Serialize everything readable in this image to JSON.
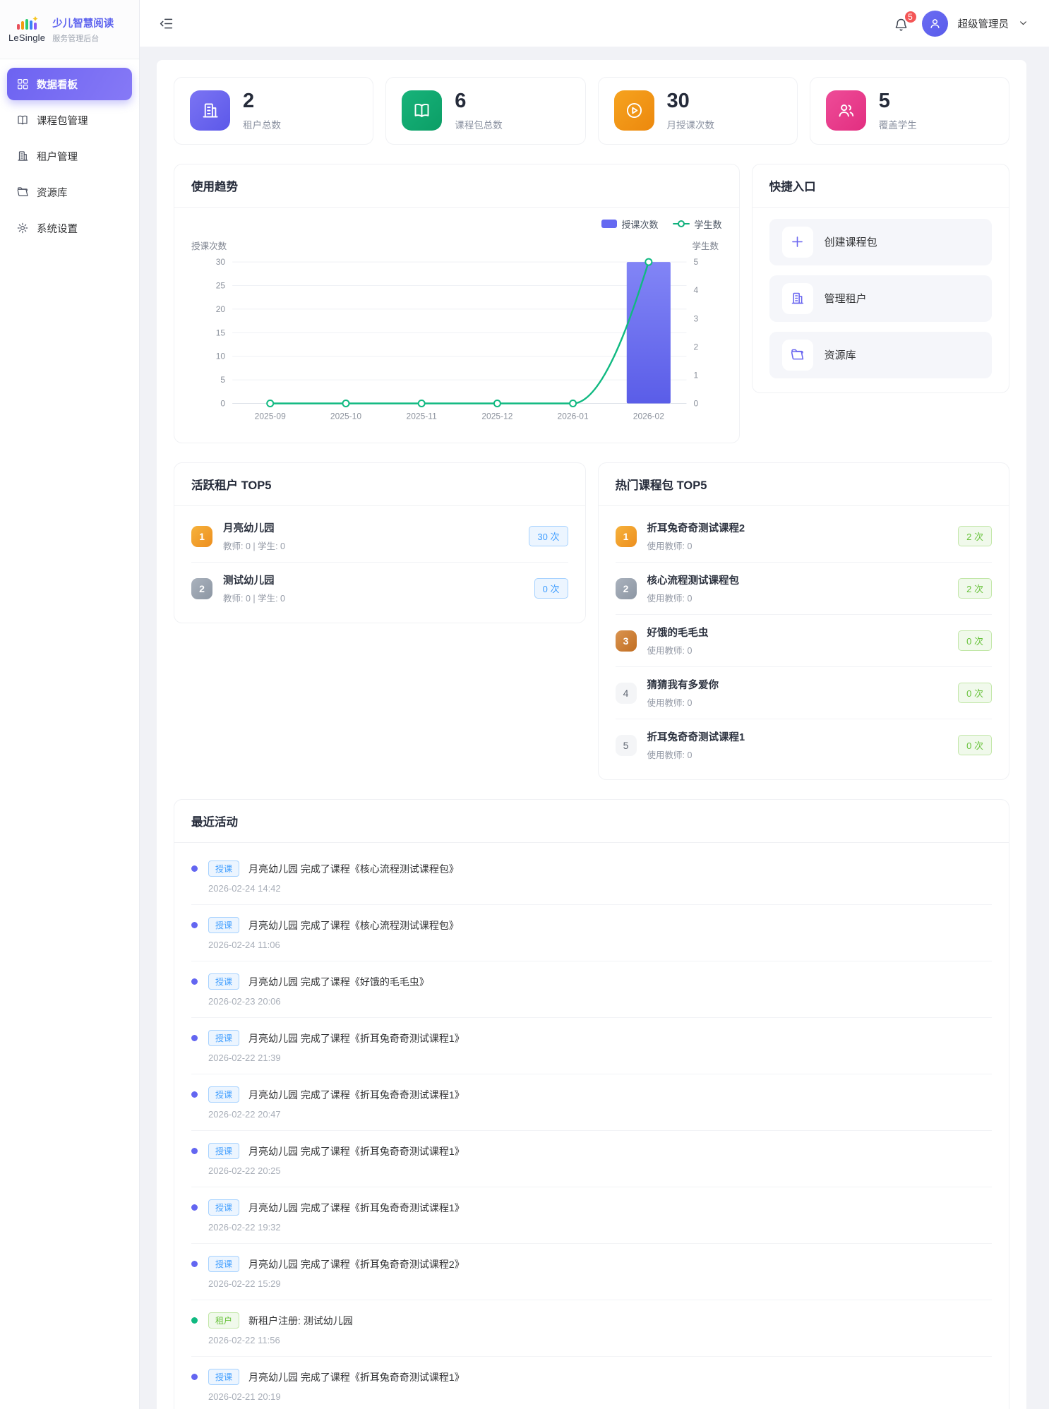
{
  "brand": {
    "logo_text": "LeSingle",
    "title": "少儿智慧阅读",
    "subtitle": "服务管理后台"
  },
  "sidebar": {
    "items": [
      {
        "label": "数据看板",
        "icon": "dashboard-grid-icon",
        "active": true
      },
      {
        "label": "课程包管理",
        "icon": "book-icon",
        "active": false
      },
      {
        "label": "租户管理",
        "icon": "building-icon",
        "active": false
      },
      {
        "label": "资源库",
        "icon": "folder-icon",
        "active": false
      },
      {
        "label": "系统设置",
        "icon": "gear-icon",
        "active": false
      }
    ]
  },
  "header": {
    "notification_count": "5",
    "username": "超级管理员"
  },
  "stats": [
    {
      "value": "2",
      "label": "租户总数",
      "color": "#6366f1"
    },
    {
      "value": "6",
      "label": "课程包总数",
      "color": "#10b981"
    },
    {
      "value": "30",
      "label": "月授课次数",
      "color": "#f59e0b"
    },
    {
      "value": "5",
      "label": "覆盖学生",
      "color": "#ec4899"
    }
  ],
  "trend": {
    "title": "使用趋势",
    "legend": [
      "授课次数",
      "学生数"
    ]
  },
  "chart_data": {
    "type": "bar",
    "title": "使用趋势",
    "categories": [
      "2025-09",
      "2025-10",
      "2025-11",
      "2025-12",
      "2026-01",
      "2026-02"
    ],
    "series": [
      {
        "name": "授课次数",
        "type": "bar",
        "axis": "left",
        "color": "#6467f0",
        "values": [
          0,
          0,
          0,
          0,
          0,
          30
        ]
      },
      {
        "name": "学生数",
        "type": "line",
        "axis": "right",
        "color": "#10b981",
        "values": [
          0,
          0,
          0,
          0,
          0,
          5
        ]
      }
    ],
    "left_axis": {
      "name": "授课次数",
      "min": 0,
      "max": 30,
      "ticks": [
        0,
        5,
        10,
        15,
        20,
        25,
        30
      ]
    },
    "right_axis": {
      "name": "学生数",
      "min": 0,
      "max": 5,
      "ticks": [
        0,
        1,
        2,
        3,
        4,
        5
      ]
    },
    "grid": true,
    "legend_position": "top-right"
  },
  "quick": {
    "title": "快捷入口",
    "items": [
      {
        "label": "创建课程包",
        "icon": "plus-icon"
      },
      {
        "label": "管理租户",
        "icon": "building-icon"
      },
      {
        "label": "资源库",
        "icon": "folder-icon"
      }
    ]
  },
  "active_tenants": {
    "title": "活跃租户 TOP5",
    "items": [
      {
        "rank": "1",
        "name": "月亮幼儿园",
        "sub": "教师: 0 | 学生: 0",
        "count": "30 次"
      },
      {
        "rank": "2",
        "name": "测试幼儿园",
        "sub": "教师: 0 | 学生: 0",
        "count": "0 次"
      }
    ]
  },
  "hot_packages": {
    "title": "热门课程包 TOP5",
    "items": [
      {
        "rank": "1",
        "name": "折耳兔奇奇测试课程2",
        "sub": "使用教师: 0",
        "count": "2 次"
      },
      {
        "rank": "2",
        "name": "核心流程测试课程包",
        "sub": "使用教师: 0",
        "count": "2 次"
      },
      {
        "rank": "3",
        "name": "好饿的毛毛虫",
        "sub": "使用教师: 0",
        "count": "0 次"
      },
      {
        "rank": "4",
        "name": "猜猜我有多爱你",
        "sub": "使用教师: 0",
        "count": "0 次"
      },
      {
        "rank": "5",
        "name": "折耳兔奇奇测试课程1",
        "sub": "使用教师: 0",
        "count": "0 次"
      }
    ]
  },
  "activities": {
    "title": "最近活动",
    "items": [
      {
        "badge": "授课",
        "kind": "blue",
        "text": "月亮幼儿园 完成了课程《核心流程测试课程包》",
        "time": "2026-02-24 14:42"
      },
      {
        "badge": "授课",
        "kind": "blue",
        "text": "月亮幼儿园 完成了课程《核心流程测试课程包》",
        "time": "2026-02-24 11:06"
      },
      {
        "badge": "授课",
        "kind": "blue",
        "text": "月亮幼儿园 完成了课程《好饿的毛毛虫》",
        "time": "2026-02-23 20:06"
      },
      {
        "badge": "授课",
        "kind": "blue",
        "text": "月亮幼儿园 完成了课程《折耳兔奇奇测试课程1》",
        "time": "2026-02-22 21:39"
      },
      {
        "badge": "授课",
        "kind": "blue",
        "text": "月亮幼儿园 完成了课程《折耳兔奇奇测试课程1》",
        "time": "2026-02-22 20:47"
      },
      {
        "badge": "授课",
        "kind": "blue",
        "text": "月亮幼儿园 完成了课程《折耳兔奇奇测试课程1》",
        "time": "2026-02-22 20:25"
      },
      {
        "badge": "授课",
        "kind": "blue",
        "text": "月亮幼儿园 完成了课程《折耳兔奇奇测试课程1》",
        "time": "2026-02-22 19:32"
      },
      {
        "badge": "授课",
        "kind": "blue",
        "text": "月亮幼儿园 完成了课程《折耳兔奇奇测试课程2》",
        "time": "2026-02-22 15:29"
      },
      {
        "badge": "租户",
        "kind": "green",
        "text": "新租户注册: 测试幼儿园",
        "time": "2026-02-22 11:56"
      },
      {
        "badge": "授课",
        "kind": "blue",
        "text": "月亮幼儿园 完成了课程《折耳兔奇奇测试课程1》",
        "time": "2026-02-21 20:19"
      }
    ]
  },
  "colors": {
    "accent": "#6366f1",
    "green": "#10b981",
    "orange": "#f59e0b",
    "pink": "#ec4899",
    "tag_blue": "#409eff",
    "tag_green": "#67c23a",
    "badge_red": "#f45656"
  }
}
